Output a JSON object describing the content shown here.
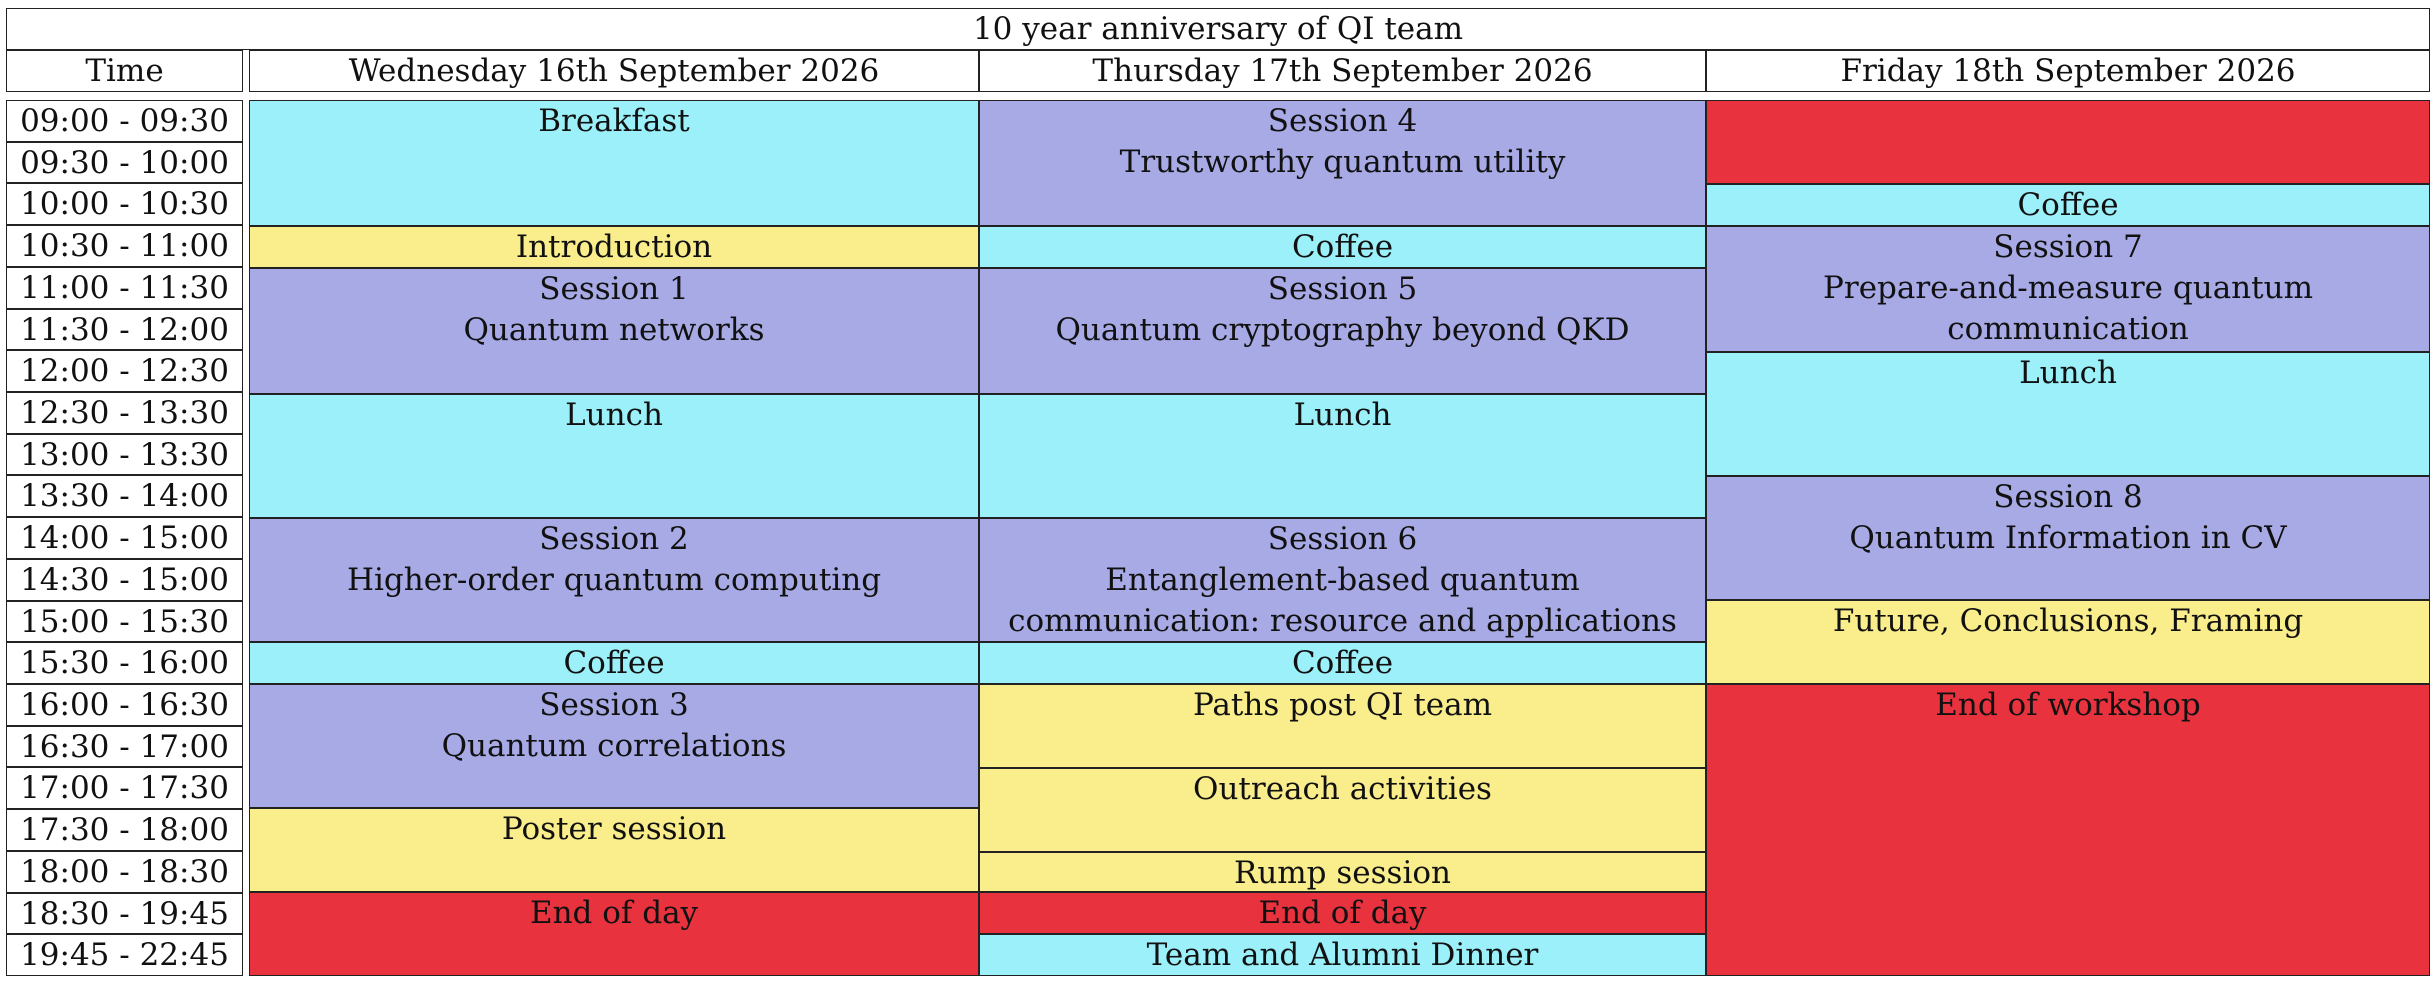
{
  "title": "10 year anniversary of QI team",
  "headers": {
    "time": "Time",
    "wed": "Wednesday 16th September 2026",
    "thu": "Thursday 17th September 2026",
    "fri": "Friday 18th September 2026"
  },
  "times": [
    "09:00 - 09:30",
    "09:30 - 10:00",
    "10:00 - 10:30",
    "10:30 - 11:00",
    "11:00 - 11:30",
    "11:30 - 12:00",
    "12:00 - 12:30",
    "12:30 - 13:30",
    "13:00 - 13:30",
    "13:30 - 14:00",
    "14:00 - 15:00",
    "14:30 - 15:00",
    "15:00 - 15:30",
    "15:30 - 16:00",
    "16:00 - 16:30",
    "16:30 - 17:00",
    "17:00 - 17:30",
    "17:30 - 18:00",
    "18:00 - 18:30",
    "18:30 - 19:45",
    "19:45 - 22:45"
  ],
  "wed": {
    "breakfast": "Breakfast",
    "introduction": "Introduction",
    "s1_title": "Session 1",
    "s1_topic": "Quantum networks",
    "lunch": "Lunch",
    "s2_title": "Session 2",
    "s2_topic": "Higher-order quantum computing",
    "coffee": "Coffee",
    "s3_title": "Session 3",
    "s3_topic": "Quantum correlations",
    "poster": "Poster session",
    "end": "End of day"
  },
  "thu": {
    "s4_title": "Session 4",
    "s4_topic": "Trustworthy quantum utility",
    "coffee1": "Coffee",
    "s5_title": "Session 5",
    "s5_topic": "Quantum cryptography beyond QKD",
    "lunch": "Lunch",
    "s6_title": "Session 6",
    "s6_topic1": "Entanglement-based quantum",
    "s6_topic2": "communication: resource and applications",
    "coffee2": "Coffee",
    "paths": "Paths post QI team",
    "outreach": "Outreach activities",
    "rump": "Rump session",
    "end": "End of day",
    "dinner": "Team and Alumni Dinner"
  },
  "fri": {
    "coffee": "Coffee",
    "s7_title": "Session 7",
    "s7_topic1": "Prepare-and-measure quantum",
    "s7_topic2": "communication",
    "lunch": "Lunch",
    "s8_title": "Session 8",
    "s8_topic": "Quantum Information in CV",
    "future": "Future, Conclusions, Framing",
    "end": "End of workshop"
  },
  "colors": {
    "cyan": "#9cf0f9",
    "lavender": "#a8aae6",
    "yellow": "#f9ed8c",
    "red": "#e8323e"
  }
}
